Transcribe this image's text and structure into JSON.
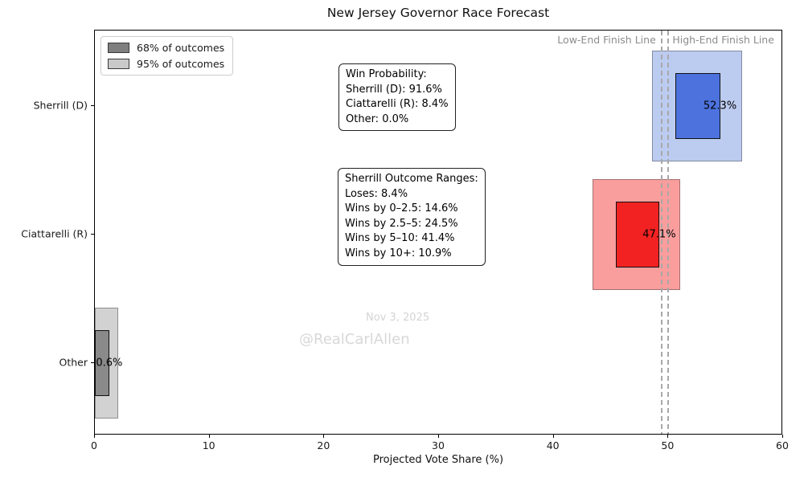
{
  "title": "New Jersey Governor Race Forecast",
  "legend": [
    {
      "label": "68% of outcomes",
      "color": "#7f7f7f"
    },
    {
      "label": "95% of outcomes",
      "color": "#c9c9c9"
    }
  ],
  "annotations": {
    "win_probability": {
      "lines": [
        "Win Probability:",
        "Sherrill (D): 91.6%",
        "Ciattarelli (R): 8.4%",
        "Other: 0.0%"
      ]
    },
    "outcome_ranges": {
      "lines": [
        "Sherrill Outcome Ranges:",
        "Loses: 8.4%",
        "Wins by 0–2.5: 14.6%",
        "Wins by 2.5–5: 24.5%",
        "Wins by 5–10: 41.4%",
        "Wins by 10+: 10.9%"
      ]
    }
  },
  "watermark": {
    "date": "Nov 3, 2025",
    "handle": "@RealCarlAllen"
  },
  "chart_data": {
    "type": "bar",
    "subtype": "interval-box-forecast",
    "title": "New Jersey Governor Race Forecast",
    "xlabel": "Projected Vote Share (%)",
    "xlim": [
      0,
      60
    ],
    "xticks": [
      0,
      10,
      20,
      30,
      40,
      50,
      60
    ],
    "categories": [
      "Sherrill (D)",
      "Ciattarelli (R)",
      "Other"
    ],
    "means": [
      52.3,
      47.1,
      0.6
    ],
    "mean_labels": [
      "52.3%",
      "47.1%",
      "0.6%"
    ],
    "series": [
      {
        "name": "95% of outcomes",
        "intervals": [
          [
            48.6,
            56.4
          ],
          [
            43.4,
            51.0
          ],
          [
            0.0,
            2.0
          ]
        ],
        "colors": [
          "#bccbf0",
          "#fa9d9d",
          "#d2d2d2"
        ]
      },
      {
        "name": "68% of outcomes",
        "intervals": [
          [
            50.6,
            54.5
          ],
          [
            45.4,
            49.2
          ],
          [
            0.0,
            1.25
          ]
        ],
        "colors": [
          "#4d72de",
          "#f22222",
          "#8a8a8a"
        ]
      }
    ],
    "finish_lines": [
      {
        "label": "Low-End Finish Line",
        "x": 49.4,
        "label_side": "left"
      },
      {
        "label": "High-End Finish Line",
        "x": 50.0,
        "label_side": "right"
      }
    ],
    "legend_position": "upper left",
    "grid": false
  }
}
